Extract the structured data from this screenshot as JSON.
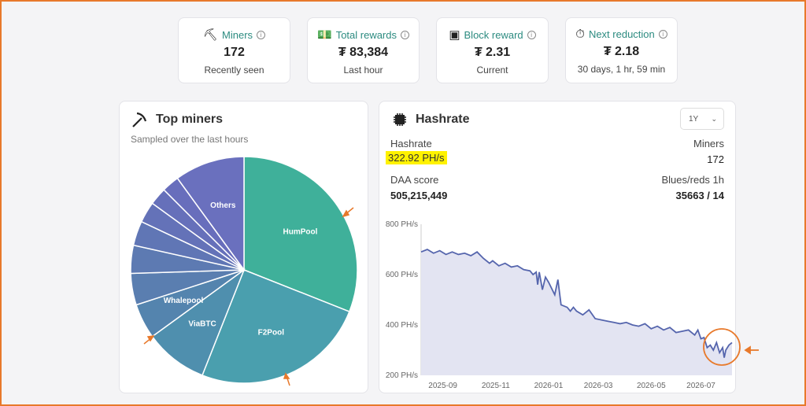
{
  "stats": [
    {
      "label": "Miners",
      "icon": "pickaxe-icon",
      "glyph": "⛏",
      "value": "172",
      "sub": "Recently seen"
    },
    {
      "label": "Total rewards",
      "icon": "money-icon",
      "glyph": "💵",
      "value": "₮ 83,384",
      "sub": "Last hour"
    },
    {
      "label": "Block reward",
      "icon": "cash-icon",
      "glyph": "▣",
      "value": "₮ 2.31",
      "sub": "Current"
    },
    {
      "label": "Next reduction",
      "icon": "stopwatch-icon",
      "glyph": "⏱",
      "value": "₮ 2.18",
      "sub": "30 days, 1 hr, 59 min"
    }
  ],
  "top_miners": {
    "title": "Top miners",
    "subtitle": "Sampled over the last hours",
    "icon": "pickaxe-icon"
  },
  "hashrate": {
    "title": "Hashrate",
    "icon": "chip-icon",
    "range": "1Y",
    "hashrate_label": "Hashrate",
    "hashrate_value": "322.92 PH/s",
    "miners_label": "Miners",
    "miners_value": "172",
    "daa_label": "DAA score",
    "daa_value": "505,215,449",
    "blues_label": "Blues/reds 1h",
    "blues_value": "35663 / 14"
  },
  "annotation_color": "#e8792b",
  "chart_data": [
    {
      "type": "pie",
      "title": "Top miners",
      "slices": [
        {
          "label": "HumPool",
          "value": 31
        },
        {
          "label": "F2Pool",
          "value": 25
        },
        {
          "label": "ViaBTC",
          "value": 9
        },
        {
          "label": "Whalepool",
          "value": 5
        },
        {
          "label": "",
          "value": 4.5
        },
        {
          "label": "",
          "value": 4
        },
        {
          "label": "",
          "value": 3.5
        },
        {
          "label": "",
          "value": 3
        },
        {
          "label": "",
          "value": 2.5
        },
        {
          "label": "",
          "value": 2.5
        },
        {
          "label": "Others",
          "value": 10
        }
      ],
      "colors": [
        "#3fb09a",
        "#4a9fae",
        "#4f8fae",
        "#5484ae",
        "#5a7eb0",
        "#5d7ab2",
        "#6076b5",
        "#6472b8",
        "#6670ba",
        "#686ebc",
        "#6a70be"
      ]
    },
    {
      "type": "area",
      "title": "Hashrate",
      "ylim": [
        200,
        800
      ],
      "yticks": [
        "200 PH/s",
        "400 PH/s",
        "600 PH/s",
        "800 PH/s"
      ],
      "ytick_values": [
        200,
        400,
        600,
        800
      ],
      "xticks": [
        "2025-09",
        "2025-11",
        "2026-01",
        "2026-03",
        "2026-05",
        "2026-07"
      ],
      "xtick_positions": [
        0.07,
        0.24,
        0.41,
        0.57,
        0.74,
        0.9
      ],
      "series": [
        {
          "x": [
            0,
            0.02,
            0.04,
            0.06,
            0.08,
            0.1,
            0.12,
            0.14,
            0.16,
            0.18,
            0.2,
            0.22,
            0.23,
            0.25,
            0.27,
            0.29,
            0.31,
            0.33,
            0.35,
            0.36,
            0.37,
            0.375,
            0.38,
            0.39,
            0.4,
            0.41,
            0.43,
            0.44,
            0.45,
            0.47,
            0.48,
            0.49,
            0.5,
            0.52,
            0.54,
            0.56,
            0.58,
            0.6,
            0.62,
            0.64,
            0.66,
            0.68,
            0.7,
            0.72,
            0.74,
            0.76,
            0.78,
            0.8,
            0.82,
            0.84,
            0.86,
            0.88,
            0.89,
            0.9,
            0.91,
            0.92,
            0.93,
            0.94,
            0.95,
            0.96,
            0.97,
            0.975,
            0.98,
            0.99,
            1.0
          ],
          "values": [
            690,
            700,
            685,
            695,
            680,
            690,
            680,
            685,
            675,
            690,
            665,
            645,
            655,
            635,
            645,
            630,
            635,
            620,
            615,
            600,
            610,
            560,
            610,
            540,
            590,
            570,
            520,
            580,
            480,
            470,
            455,
            470,
            455,
            440,
            460,
            425,
            420,
            415,
            410,
            405,
            410,
            400,
            395,
            405,
            385,
            395,
            380,
            390,
            370,
            375,
            380,
            360,
            380,
            345,
            350,
            310,
            320,
            300,
            330,
            290,
            310,
            270,
            300,
            320,
            330
          ]
        }
      ]
    }
  ]
}
